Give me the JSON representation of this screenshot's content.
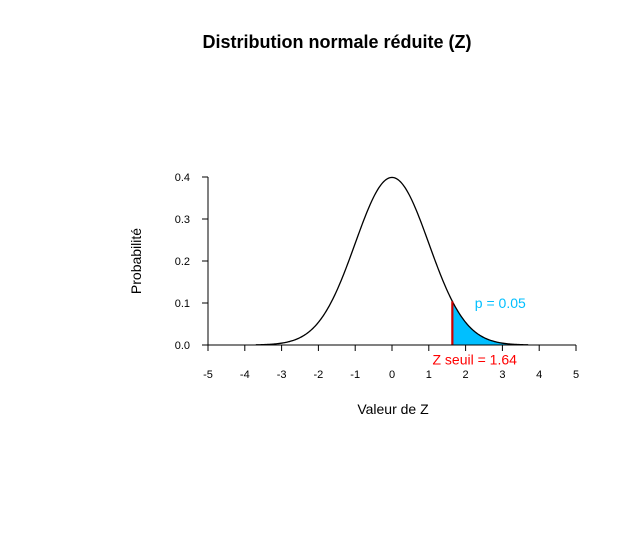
{
  "chart_data": {
    "type": "line",
    "title": "Distribution normale réduite (Z)",
    "xlabel": "Valeur de Z",
    "ylabel": "Probabilité",
    "xlim": [
      -5,
      5
    ],
    "ylim": [
      0,
      0.4
    ],
    "x_ticks": [
      "-5",
      "-4",
      "-3",
      "-2",
      "-1",
      "0",
      "1",
      "2",
      "3",
      "4",
      "5"
    ],
    "y_ticks": [
      "0.0",
      "0.1",
      "0.2",
      "0.3",
      "0.4"
    ],
    "series": [
      {
        "curve": "standard normal density",
        "x_range": [
          -3.7,
          3.7
        ],
        "color": "#000000"
      }
    ],
    "shaded_region": {
      "from": 1.64,
      "to": 3.7,
      "color": "#00bfff"
    },
    "threshold_line": {
      "x": 1.64,
      "color": "#cc0000"
    },
    "annotations": {
      "p_label": {
        "text": "p = 0.05",
        "color": "#00bfff",
        "x": 2.25,
        "y": 0.1
      },
      "z_label": {
        "text": "Z seuil = 1.64",
        "color": "#ff0000",
        "x": 1.1,
        "y": -0.035
      }
    },
    "grid": false
  }
}
